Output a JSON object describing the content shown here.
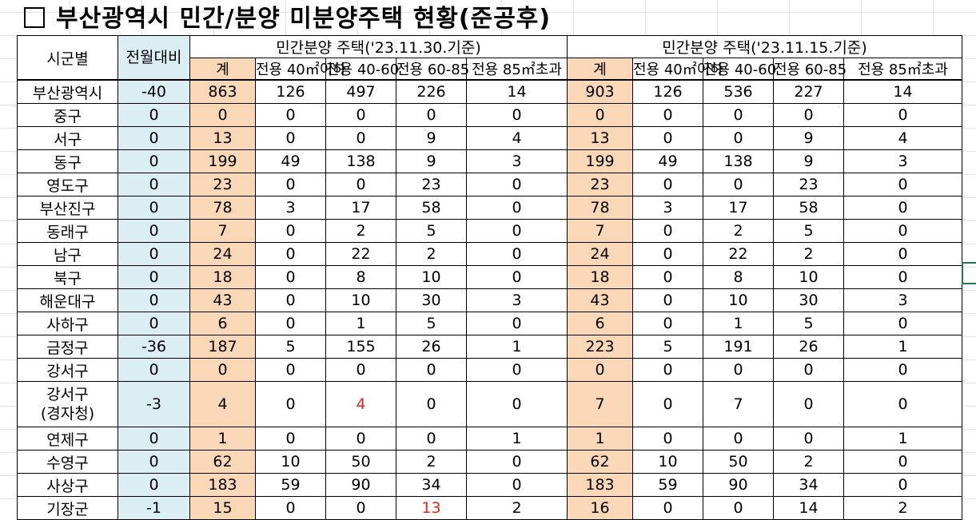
{
  "title": "부산광역시 민간/분양 미분양주택 현황(준공후)",
  "header": {
    "region": "시군별",
    "mom": "전월대비",
    "group1": "민간분양 주택('23.11.30.기준)",
    "group2": "민간분양 주택('23.11.15.기준)",
    "sub": [
      "계",
      "전용 40㎡이하",
      "전용 40-60",
      "전용 60-85",
      "전용 85㎡초과"
    ]
  },
  "rows": [
    {
      "name": "부산광역시",
      "mom": "-40",
      "a": [
        "863",
        "126",
        "497",
        "226",
        "14"
      ],
      "b": [
        "903",
        "126",
        "536",
        "227",
        "14"
      ]
    },
    {
      "name": "중구",
      "mom": "0",
      "a": [
        "0",
        "0",
        "0",
        "0",
        "0"
      ],
      "b": [
        "0",
        "0",
        "0",
        "0",
        "0"
      ]
    },
    {
      "name": "서구",
      "mom": "0",
      "a": [
        "13",
        "0",
        "0",
        "9",
        "4"
      ],
      "b": [
        "13",
        "0",
        "0",
        "9",
        "4"
      ]
    },
    {
      "name": "동구",
      "mom": "0",
      "a": [
        "199",
        "49",
        "138",
        "9",
        "3"
      ],
      "b": [
        "199",
        "49",
        "138",
        "9",
        "3"
      ]
    },
    {
      "name": "영도구",
      "mom": "0",
      "a": [
        "23",
        "0",
        "0",
        "23",
        "0"
      ],
      "b": [
        "23",
        "0",
        "0",
        "23",
        "0"
      ]
    },
    {
      "name": "부산진구",
      "mom": "0",
      "a": [
        "78",
        "3",
        "17",
        "58",
        "0"
      ],
      "b": [
        "78",
        "3",
        "17",
        "58",
        "0"
      ]
    },
    {
      "name": "동래구",
      "mom": "0",
      "a": [
        "7",
        "0",
        "2",
        "5",
        "0"
      ],
      "b": [
        "7",
        "0",
        "2",
        "5",
        "0"
      ]
    },
    {
      "name": "남구",
      "mom": "0",
      "a": [
        "24",
        "0",
        "22",
        "2",
        "0"
      ],
      "b": [
        "24",
        "0",
        "22",
        "2",
        "0"
      ]
    },
    {
      "name": "북구",
      "mom": "0",
      "a": [
        "18",
        "0",
        "8",
        "10",
        "0"
      ],
      "b": [
        "18",
        "0",
        "8",
        "10",
        "0"
      ]
    },
    {
      "name": "해운대구",
      "mom": "0",
      "a": [
        "43",
        "0",
        "10",
        "30",
        "3"
      ],
      "b": [
        "43",
        "0",
        "10",
        "30",
        "3"
      ]
    },
    {
      "name": "사하구",
      "mom": "0",
      "a": [
        "6",
        "0",
        "1",
        "5",
        "0"
      ],
      "b": [
        "6",
        "0",
        "1",
        "5",
        "0"
      ]
    },
    {
      "name": "금정구",
      "mom": "-36",
      "a": [
        "187",
        "5",
        "155",
        "26",
        "1"
      ],
      "b": [
        "223",
        "5",
        "191",
        "26",
        "1"
      ]
    },
    {
      "name": "강서구",
      "mom": "0",
      "a": [
        "0",
        "0",
        "0",
        "0",
        "0"
      ],
      "b": [
        "0",
        "0",
        "0",
        "0",
        "0"
      ]
    },
    {
      "name": "강서구",
      "name2": "(경자청)",
      "mom": "-3",
      "a": [
        "4",
        "0",
        "4",
        "0",
        "0"
      ],
      "b": [
        "7",
        "0",
        "7",
        "0",
        "0"
      ],
      "red_a": 2
    },
    {
      "name": "연제구",
      "mom": "0",
      "a": [
        "1",
        "0",
        "0",
        "0",
        "1"
      ],
      "b": [
        "1",
        "0",
        "0",
        "0",
        "1"
      ]
    },
    {
      "name": "수영구",
      "mom": "0",
      "a": [
        "62",
        "10",
        "50",
        "2",
        "0"
      ],
      "b": [
        "62",
        "10",
        "50",
        "2",
        "0"
      ]
    },
    {
      "name": "사상구",
      "mom": "0",
      "a": [
        "183",
        "59",
        "90",
        "34",
        "0"
      ],
      "b": [
        "183",
        "59",
        "90",
        "34",
        "0"
      ]
    },
    {
      "name": "기장군",
      "mom": "-1",
      "a": [
        "15",
        "0",
        "0",
        "13",
        "2"
      ],
      "b": [
        "16",
        "0",
        "0",
        "14",
        "2"
      ],
      "red_a": 3
    }
  ],
  "colors": {
    "total_bg": "#fad7b6",
    "mom_bg": "#dbeef4",
    "changed": "#e0261e"
  }
}
